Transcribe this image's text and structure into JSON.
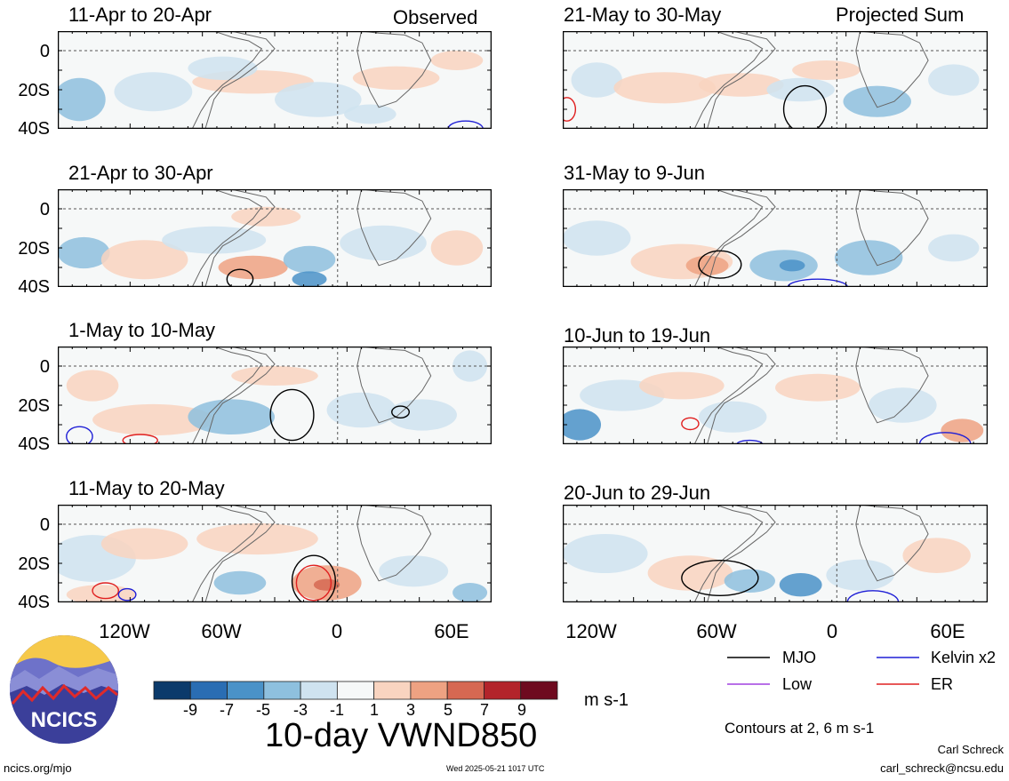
{
  "left_header": "Observed",
  "right_header": "Projected Sum",
  "left_panels": [
    {
      "title": "11-Apr to 20-Apr"
    },
    {
      "title": "21-Apr to 30-Apr"
    },
    {
      "title": "1-May to 10-May"
    },
    {
      "title": "11-May to 20-May"
    }
  ],
  "right_panels": [
    {
      "title": "21-May to 30-May"
    },
    {
      "title": "31-May to 9-Jun"
    },
    {
      "title": "10-Jun to 19-Jun"
    },
    {
      "title": "20-Jun to 29-Jun"
    }
  ],
  "chart_data": {
    "type": "heatmap",
    "title": "10-day VWND850",
    "units": "m s-1",
    "y_ticks": [
      "0",
      "20S",
      "40S"
    ],
    "x_ticks": [
      "120W",
      "60W",
      "0",
      "60E"
    ],
    "colorbar": {
      "labels": [
        "-9",
        "-7",
        "-5",
        "-3",
        "-1",
        "1",
        "3",
        "5",
        "7",
        "9"
      ],
      "colors": [
        "#0b3a6b",
        "#2a6db3",
        "#4a92c8",
        "#8ec0de",
        "#cfe3f0",
        "#f6f8f8",
        "#f9d4c0",
        "#eea282",
        "#d66852",
        "#b3242b",
        "#6e0a1f"
      ]
    },
    "legend": [
      {
        "label": "MJO",
        "color": "#000000"
      },
      {
        "label": "Kelvin x2",
        "color": "#1f1fd6"
      },
      {
        "label": "Low",
        "color": "#a040e0"
      },
      {
        "label": "ER",
        "color": "#e02020"
      }
    ],
    "contour_note": "Contours at 2, 6 m s-1"
  },
  "footer": {
    "org_logo": "NCICS",
    "url": "ncics.org/mjo",
    "timestamp": "Wed 2025-05-21 1017 UTC",
    "author": "Carl Schreck",
    "email": "carl_schreck@ncsu.edu"
  }
}
